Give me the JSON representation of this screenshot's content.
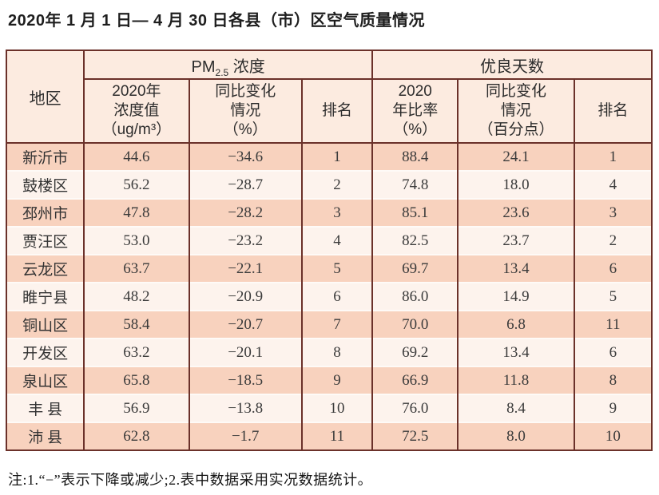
{
  "title": "2020年 1 月 1 日— 4 月 30 日各县（市）区空气质量情况",
  "table": {
    "headers": {
      "region": "地区",
      "pm_group": {
        "prefix": "PM",
        "subscript": "2.5",
        "suffix": " 浓度"
      },
      "good_group": "优良天数",
      "pm_value": "2020年\n浓度值\n（ug/m³）",
      "pm_change": "同比变化\n情况\n（%）",
      "pm_rank": "排名",
      "good_rate": "2020\n年比率\n（%）",
      "good_change": "同比变化\n情况\n（百分点）",
      "good_rank": "排名"
    },
    "rows": [
      {
        "region": "新沂市",
        "pm_value": "44.6",
        "pm_change": "−34.6",
        "pm_rank": "1",
        "good_rate": "88.4",
        "good_change": "24.1",
        "good_rank": "1"
      },
      {
        "region": "鼓楼区",
        "pm_value": "56.2",
        "pm_change": "−28.7",
        "pm_rank": "2",
        "good_rate": "74.8",
        "good_change": "18.0",
        "good_rank": "4"
      },
      {
        "region": "邳州市",
        "pm_value": "47.8",
        "pm_change": "−28.2",
        "pm_rank": "3",
        "good_rate": "85.1",
        "good_change": "23.6",
        "good_rank": "3"
      },
      {
        "region": "贾汪区",
        "pm_value": "53.0",
        "pm_change": "−23.2",
        "pm_rank": "4",
        "good_rate": "82.5",
        "good_change": "23.7",
        "good_rank": "2"
      },
      {
        "region": "云龙区",
        "pm_value": "63.7",
        "pm_change": "−22.1",
        "pm_rank": "5",
        "good_rate": "69.7",
        "good_change": "13.4",
        "good_rank": "6"
      },
      {
        "region": "睢宁县",
        "pm_value": "48.2",
        "pm_change": "−20.9",
        "pm_rank": "6",
        "good_rate": "86.0",
        "good_change": "14.9",
        "good_rank": "5"
      },
      {
        "region": "铜山区",
        "pm_value": "58.4",
        "pm_change": "−20.7",
        "pm_rank": "7",
        "good_rate": "70.0",
        "good_change": "6.8",
        "good_rank": "11"
      },
      {
        "region": "开发区",
        "pm_value": "63.2",
        "pm_change": "−20.1",
        "pm_rank": "8",
        "good_rate": "69.2",
        "good_change": "13.4",
        "good_rank": "6"
      },
      {
        "region": "泉山区",
        "pm_value": "65.8",
        "pm_change": "−18.5",
        "pm_rank": "9",
        "good_rate": "66.9",
        "good_change": "11.8",
        "good_rank": "8"
      },
      {
        "region": "丰 县",
        "pm_value": "56.9",
        "pm_change": "−13.8",
        "pm_rank": "10",
        "good_rate": "76.0",
        "good_change": "8.4",
        "good_rank": "9"
      },
      {
        "region": "沛 县",
        "pm_value": "62.8",
        "pm_change": "−1.7",
        "pm_rank": "11",
        "good_rate": "72.5",
        "good_change": "8.0",
        "good_rank": "10"
      }
    ]
  },
  "note": "注:1.“−”表示下降或减少;2.表中数据采用实况数据统计。",
  "colors": {
    "border": "#6b312a",
    "header_bg": "#fcebe0",
    "row_odd_bg": "#f8d2be",
    "row_even_bg": "#fdf3ed"
  }
}
